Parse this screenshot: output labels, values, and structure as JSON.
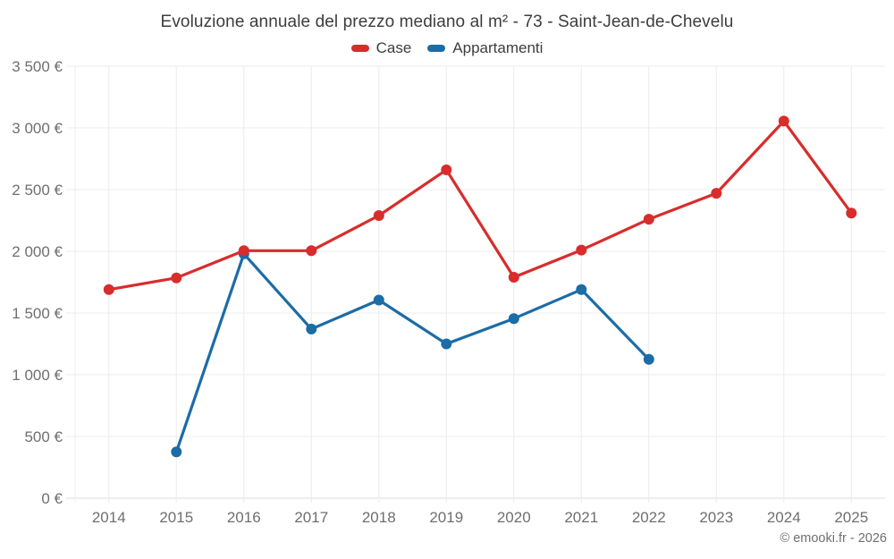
{
  "header": {
    "title": "Evoluzione annuale del prezzo mediano al m² - 73 - Saint-Jean-de-Chevelu"
  },
  "legend": {
    "items": [
      {
        "label": "Case",
        "color": "#d92c2c"
      },
      {
        "label": "Appartamenti",
        "color": "#1c6ca6"
      }
    ]
  },
  "footer": {
    "copyright": "© emooki.fr - 2026"
  },
  "colors": {
    "grid": "#ececec",
    "axis_line": "#dcdcdc",
    "axis_text": "#6f6f6f",
    "title_text": "#3d3d3d",
    "case_red": "#d92c2c",
    "appartamenti_blue": "#1c6ca6"
  },
  "chart_data": {
    "type": "line",
    "title": "Evoluzione annuale del prezzo mediano al m² - 73 - Saint-Jean-de-Chevelu",
    "xlabel": "",
    "ylabel": "",
    "x": [
      2014,
      2015,
      2016,
      2017,
      2018,
      2019,
      2020,
      2021,
      2022,
      2023,
      2024,
      2025
    ],
    "x_tick_labels": [
      "2014",
      "2015",
      "2016",
      "2017",
      "2018",
      "2019",
      "2020",
      "2021",
      "2022",
      "2023",
      "2024",
      "2025"
    ],
    "ylim": [
      0,
      3500
    ],
    "y_ticks": [
      0,
      500,
      1000,
      1500,
      2000,
      2500,
      3000,
      3500
    ],
    "y_tick_labels": [
      "0 €",
      "500 €",
      "1 000 €",
      "1 500 €",
      "2 000 €",
      "2 500 €",
      "3 000 €",
      "3 500 €"
    ],
    "grid": true,
    "legend_position": "top",
    "series": [
      {
        "name": "Case",
        "color": "#d92c2c",
        "values": [
          1690,
          1785,
          2005,
          2005,
          2290,
          2660,
          1790,
          2010,
          2260,
          2470,
          3055,
          2310
        ]
      },
      {
        "name": "Appartamenti",
        "color": "#1c6ca6",
        "values": [
          null,
          375,
          1980,
          1370,
          1605,
          1250,
          1455,
          1690,
          1125,
          null,
          null,
          null
        ]
      }
    ]
  }
}
